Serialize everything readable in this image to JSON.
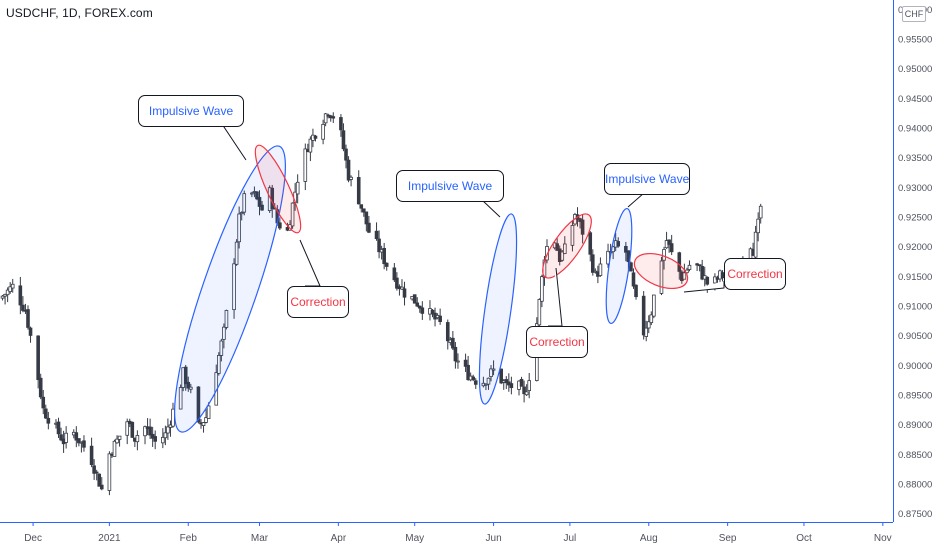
{
  "header": {
    "symbol": "USDCHF, 1D, FOREX.com",
    "currency": "CHF"
  },
  "chart_data": {
    "type": "candlestick",
    "title": "USDCHF, 1D, FOREX.com",
    "y_axis": {
      "ticks": [
        "0.87500",
        "0.88000",
        "0.88500",
        "0.89000",
        "0.89500",
        "0.90000",
        "0.90500",
        "0.91000",
        "0.91500",
        "0.92000",
        "0.92500",
        "0.93000",
        "0.93500",
        "0.94000",
        "0.94500",
        "0.95000",
        "0.95500",
        "0.96000"
      ],
      "range": [
        0.8735,
        0.9615
      ],
      "position": "right"
    },
    "x_axis": {
      "ticks": [
        {
          "label": "Dec",
          "day": -30
        },
        {
          "label": "2021",
          "day": 0
        },
        {
          "label": "Feb",
          "day": 31
        },
        {
          "label": "Mar",
          "day": 59
        },
        {
          "label": "Apr",
          "day": 90
        },
        {
          "label": "May",
          "day": 120
        },
        {
          "label": "Jun",
          "day": 151
        },
        {
          "label": "Jul",
          "day": 181
        },
        {
          "label": "Aug",
          "day": 212
        },
        {
          "label": "Sep",
          "day": 243
        },
        {
          "label": "Oct",
          "day": 273
        },
        {
          "label": "Nov",
          "day": 304
        }
      ],
      "range": [
        -43,
        308
      ]
    },
    "close_path": [
      [
        -43,
        0.9112
      ],
      [
        -38,
        0.9132
      ],
      [
        -33,
        0.9092
      ],
      [
        -29,
        0.9005
      ],
      [
        -26,
        0.8925
      ],
      [
        -22,
        0.8898
      ],
      [
        -18,
        0.8872
      ],
      [
        -14,
        0.8885
      ],
      [
        -10,
        0.8862
      ],
      [
        -7,
        0.884
      ],
      [
        -3,
        0.879
      ],
      [
        0,
        0.885
      ],
      [
        3,
        0.8872
      ],
      [
        7,
        0.8905
      ],
      [
        10,
        0.8878
      ],
      [
        14,
        0.8895
      ],
      [
        18,
        0.887
      ],
      [
        22,
        0.8882
      ],
      [
        26,
        0.8935
      ],
      [
        29,
        0.8985
      ],
      [
        32,
        0.8955
      ],
      [
        35,
        0.8895
      ],
      [
        38,
        0.8912
      ],
      [
        42,
        0.8995
      ],
      [
        45,
        0.9055
      ],
      [
        48,
        0.9145
      ],
      [
        51,
        0.9245
      ],
      [
        54,
        0.9295
      ],
      [
        57,
        0.9285
      ],
      [
        60,
        0.9262
      ],
      [
        63,
        0.929
      ],
      [
        66,
        0.924
      ],
      [
        70,
        0.9225
      ],
      [
        74,
        0.9315
      ],
      [
        78,
        0.937
      ],
      [
        82,
        0.94
      ],
      [
        86,
        0.943
      ],
      [
        90,
        0.941
      ],
      [
        94,
        0.932
      ],
      [
        98,
        0.928
      ],
      [
        102,
        0.9225
      ],
      [
        106,
        0.9195
      ],
      [
        111,
        0.9152
      ],
      [
        116,
        0.9122
      ],
      [
        121,
        0.9105
      ],
      [
        126,
        0.9085
      ],
      [
        131,
        0.9065
      ],
      [
        136,
        0.901
      ],
      [
        141,
        0.8985
      ],
      [
        146,
        0.8968
      ],
      [
        151,
        0.899
      ],
      [
        156,
        0.8965
      ],
      [
        161,
        0.8962
      ],
      [
        163,
        0.8945
      ],
      [
        166,
        0.9
      ],
      [
        169,
        0.9105
      ],
      [
        171,
        0.9185
      ],
      [
        174,
        0.9225
      ],
      [
        177,
        0.918
      ],
      [
        180,
        0.92
      ],
      [
        183,
        0.9255
      ],
      [
        187,
        0.9215
      ],
      [
        191,
        0.915
      ],
      [
        195,
        0.9178
      ],
      [
        199,
        0.92
      ],
      [
        203,
        0.919
      ],
      [
        207,
        0.9105
      ],
      [
        210,
        0.9055
      ],
      [
        213,
        0.909
      ],
      [
        216,
        0.9165
      ],
      [
        219,
        0.921
      ],
      [
        222,
        0.9175
      ],
      [
        225,
        0.9148
      ],
      [
        229,
        0.9175
      ],
      [
        232,
        0.916
      ],
      [
        236,
        0.913
      ],
      [
        240,
        0.915
      ],
      [
        244,
        0.915
      ],
      [
        248,
        0.9172
      ],
      [
        251,
        0.9215
      ],
      [
        253,
        0.9195
      ],
      [
        255,
        0.9235
      ],
      [
        257,
        0.9298
      ]
    ],
    "annotations": [
      {
        "label": "Impulsive Wave",
        "color": "#2962ff"
      },
      {
        "label": "Correction",
        "color": "#f23645"
      },
      {
        "label": "Impulsive Wave",
        "color": "#2962ff"
      },
      {
        "label": "Correction",
        "color": "#f23645"
      },
      {
        "label": "Impulsive Wave",
        "color": "#2962ff"
      },
      {
        "label": "Correction",
        "color": "#f23645"
      }
    ]
  },
  "colors": {
    "candle": "#363a45",
    "axis_text": "#50535e",
    "axis_line": "#2962ff",
    "impulse": "#2962ff",
    "impulse_fill": "rgba(41,98,255,0.08)",
    "correction": "#f23645",
    "correction_fill": "rgba(242,54,69,0.10)"
  }
}
